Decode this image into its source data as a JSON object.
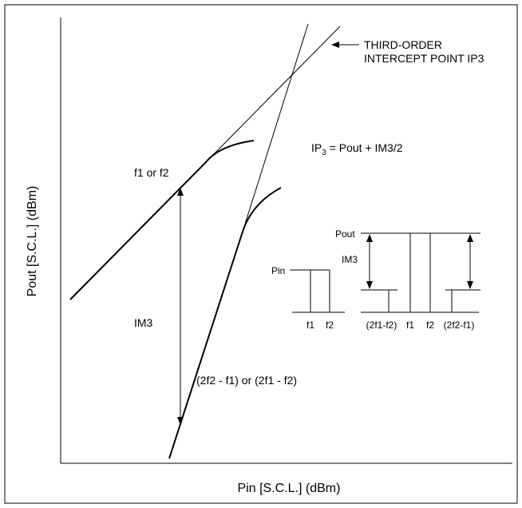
{
  "colors": {
    "stroke": "#000000",
    "background": "#ffffff"
  },
  "labels": {
    "ip3_line1": "THIRD-ORDER",
    "ip3_line2": "INTERCEPT POINT IP3",
    "formula_prefix": "IP",
    "formula_sub": "3",
    "formula_rest": " = Pout + IM3/2",
    "fundamental": "f1 or f2",
    "im3": "IM3",
    "intermod": "(2f2 - f1) or (2f1 - f2)",
    "x_axis": "Pin [S.C.L.] (dBm)",
    "y_axis": "Pout [S.C.L.] (dBm)"
  },
  "input_spectrum": {
    "level_label": "Pin",
    "tones": [
      "f1",
      "f2"
    ]
  },
  "output_spectrum": {
    "level_label": "Pout",
    "im_label": "IM3",
    "tones": [
      "(2f1-f2)",
      "f1",
      "f2",
      "(2f2-f1)"
    ]
  }
}
